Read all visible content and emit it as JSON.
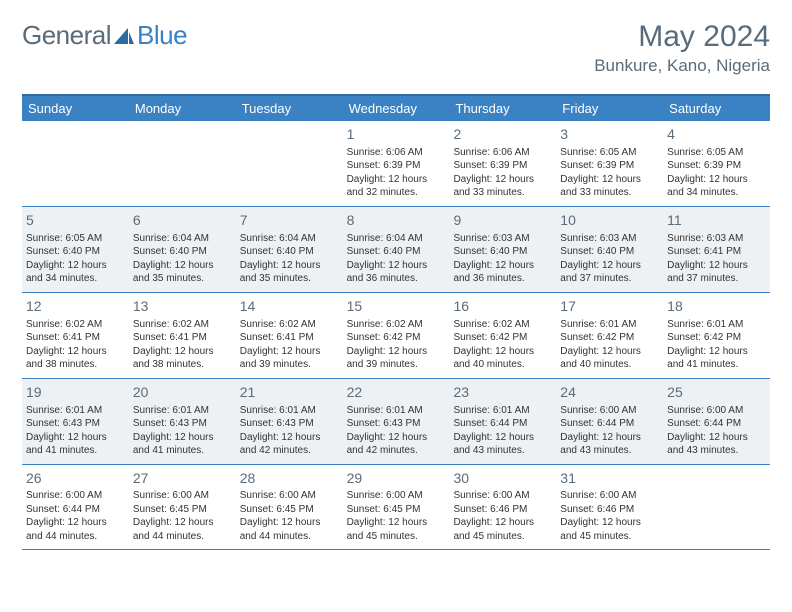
{
  "logo": {
    "left": "General",
    "right": "Blue"
  },
  "title": "May 2024",
  "location": "Bunkure, Kano, Nigeria",
  "colors": {
    "headerBg": "#3b82c4",
    "borderTop": "#2d6ba3",
    "rowBorder": "#3b82c4",
    "altRow": "#eef1f3",
    "textMuted": "#5a6b7a"
  },
  "dayNames": [
    "Sunday",
    "Monday",
    "Tuesday",
    "Wednesday",
    "Thursday",
    "Friday",
    "Saturday"
  ],
  "weeks": [
    {
      "alt": false,
      "cells": [
        {
          "day": "",
          "sunrise": "",
          "sunset": "",
          "daylight": ""
        },
        {
          "day": "",
          "sunrise": "",
          "sunset": "",
          "daylight": ""
        },
        {
          "day": "",
          "sunrise": "",
          "sunset": "",
          "daylight": ""
        },
        {
          "day": "1",
          "sunrise": "Sunrise: 6:06 AM",
          "sunset": "Sunset: 6:39 PM",
          "daylight": "Daylight: 12 hours and 32 minutes."
        },
        {
          "day": "2",
          "sunrise": "Sunrise: 6:06 AM",
          "sunset": "Sunset: 6:39 PM",
          "daylight": "Daylight: 12 hours and 33 minutes."
        },
        {
          "day": "3",
          "sunrise": "Sunrise: 6:05 AM",
          "sunset": "Sunset: 6:39 PM",
          "daylight": "Daylight: 12 hours and 33 minutes."
        },
        {
          "day": "4",
          "sunrise": "Sunrise: 6:05 AM",
          "sunset": "Sunset: 6:39 PM",
          "daylight": "Daylight: 12 hours and 34 minutes."
        }
      ]
    },
    {
      "alt": true,
      "cells": [
        {
          "day": "5",
          "sunrise": "Sunrise: 6:05 AM",
          "sunset": "Sunset: 6:40 PM",
          "daylight": "Daylight: 12 hours and 34 minutes."
        },
        {
          "day": "6",
          "sunrise": "Sunrise: 6:04 AM",
          "sunset": "Sunset: 6:40 PM",
          "daylight": "Daylight: 12 hours and 35 minutes."
        },
        {
          "day": "7",
          "sunrise": "Sunrise: 6:04 AM",
          "sunset": "Sunset: 6:40 PM",
          "daylight": "Daylight: 12 hours and 35 minutes."
        },
        {
          "day": "8",
          "sunrise": "Sunrise: 6:04 AM",
          "sunset": "Sunset: 6:40 PM",
          "daylight": "Daylight: 12 hours and 36 minutes."
        },
        {
          "day": "9",
          "sunrise": "Sunrise: 6:03 AM",
          "sunset": "Sunset: 6:40 PM",
          "daylight": "Daylight: 12 hours and 36 minutes."
        },
        {
          "day": "10",
          "sunrise": "Sunrise: 6:03 AM",
          "sunset": "Sunset: 6:40 PM",
          "daylight": "Daylight: 12 hours and 37 minutes."
        },
        {
          "day": "11",
          "sunrise": "Sunrise: 6:03 AM",
          "sunset": "Sunset: 6:41 PM",
          "daylight": "Daylight: 12 hours and 37 minutes."
        }
      ]
    },
    {
      "alt": false,
      "cells": [
        {
          "day": "12",
          "sunrise": "Sunrise: 6:02 AM",
          "sunset": "Sunset: 6:41 PM",
          "daylight": "Daylight: 12 hours and 38 minutes."
        },
        {
          "day": "13",
          "sunrise": "Sunrise: 6:02 AM",
          "sunset": "Sunset: 6:41 PM",
          "daylight": "Daylight: 12 hours and 38 minutes."
        },
        {
          "day": "14",
          "sunrise": "Sunrise: 6:02 AM",
          "sunset": "Sunset: 6:41 PM",
          "daylight": "Daylight: 12 hours and 39 minutes."
        },
        {
          "day": "15",
          "sunrise": "Sunrise: 6:02 AM",
          "sunset": "Sunset: 6:42 PM",
          "daylight": "Daylight: 12 hours and 39 minutes."
        },
        {
          "day": "16",
          "sunrise": "Sunrise: 6:02 AM",
          "sunset": "Sunset: 6:42 PM",
          "daylight": "Daylight: 12 hours and 40 minutes."
        },
        {
          "day": "17",
          "sunrise": "Sunrise: 6:01 AM",
          "sunset": "Sunset: 6:42 PM",
          "daylight": "Daylight: 12 hours and 40 minutes."
        },
        {
          "day": "18",
          "sunrise": "Sunrise: 6:01 AM",
          "sunset": "Sunset: 6:42 PM",
          "daylight": "Daylight: 12 hours and 41 minutes."
        }
      ]
    },
    {
      "alt": true,
      "cells": [
        {
          "day": "19",
          "sunrise": "Sunrise: 6:01 AM",
          "sunset": "Sunset: 6:43 PM",
          "daylight": "Daylight: 12 hours and 41 minutes."
        },
        {
          "day": "20",
          "sunrise": "Sunrise: 6:01 AM",
          "sunset": "Sunset: 6:43 PM",
          "daylight": "Daylight: 12 hours and 41 minutes."
        },
        {
          "day": "21",
          "sunrise": "Sunrise: 6:01 AM",
          "sunset": "Sunset: 6:43 PM",
          "daylight": "Daylight: 12 hours and 42 minutes."
        },
        {
          "day": "22",
          "sunrise": "Sunrise: 6:01 AM",
          "sunset": "Sunset: 6:43 PM",
          "daylight": "Daylight: 12 hours and 42 minutes."
        },
        {
          "day": "23",
          "sunrise": "Sunrise: 6:01 AM",
          "sunset": "Sunset: 6:44 PM",
          "daylight": "Daylight: 12 hours and 43 minutes."
        },
        {
          "day": "24",
          "sunrise": "Sunrise: 6:00 AM",
          "sunset": "Sunset: 6:44 PM",
          "daylight": "Daylight: 12 hours and 43 minutes."
        },
        {
          "day": "25",
          "sunrise": "Sunrise: 6:00 AM",
          "sunset": "Sunset: 6:44 PM",
          "daylight": "Daylight: 12 hours and 43 minutes."
        }
      ]
    },
    {
      "alt": false,
      "cells": [
        {
          "day": "26",
          "sunrise": "Sunrise: 6:00 AM",
          "sunset": "Sunset: 6:44 PM",
          "daylight": "Daylight: 12 hours and 44 minutes."
        },
        {
          "day": "27",
          "sunrise": "Sunrise: 6:00 AM",
          "sunset": "Sunset: 6:45 PM",
          "daylight": "Daylight: 12 hours and 44 minutes."
        },
        {
          "day": "28",
          "sunrise": "Sunrise: 6:00 AM",
          "sunset": "Sunset: 6:45 PM",
          "daylight": "Daylight: 12 hours and 44 minutes."
        },
        {
          "day": "29",
          "sunrise": "Sunrise: 6:00 AM",
          "sunset": "Sunset: 6:45 PM",
          "daylight": "Daylight: 12 hours and 45 minutes."
        },
        {
          "day": "30",
          "sunrise": "Sunrise: 6:00 AM",
          "sunset": "Sunset: 6:46 PM",
          "daylight": "Daylight: 12 hours and 45 minutes."
        },
        {
          "day": "31",
          "sunrise": "Sunrise: 6:00 AM",
          "sunset": "Sunset: 6:46 PM",
          "daylight": "Daylight: 12 hours and 45 minutes."
        },
        {
          "day": "",
          "sunrise": "",
          "sunset": "",
          "daylight": ""
        }
      ]
    }
  ]
}
